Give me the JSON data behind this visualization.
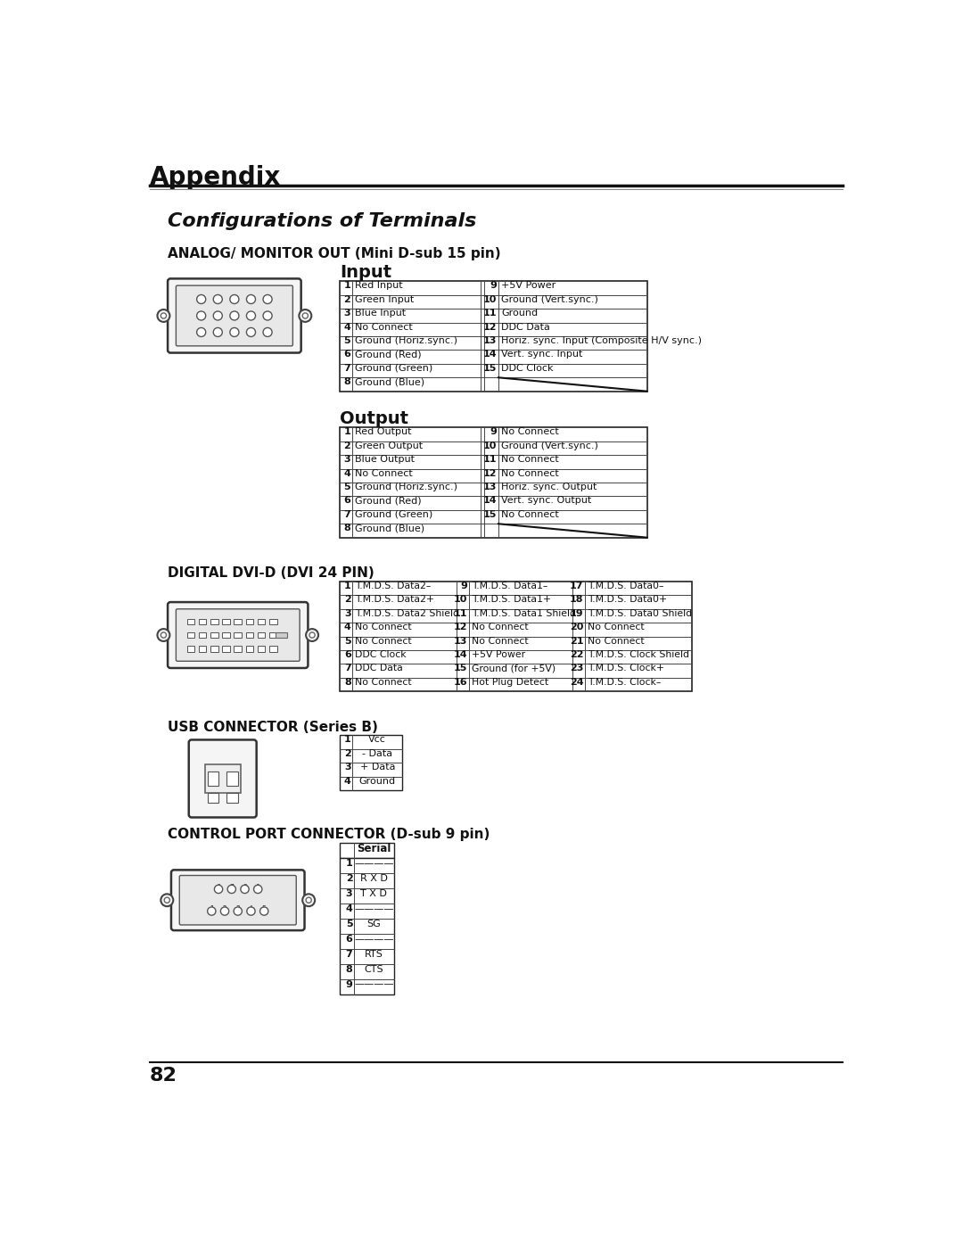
{
  "page_title": "Appendix",
  "section_title": "Configurations of Terminals",
  "bg_color": "#ffffff",
  "analog_label": "ANALOG/ MONITOR OUT (Mini D-sub 15 pin)",
  "input_title": "Input",
  "output_title": "Output",
  "input_rows_left": [
    [
      "1",
      "Red Input"
    ],
    [
      "2",
      "Green Input"
    ],
    [
      "3",
      "Blue Input"
    ],
    [
      "4",
      "No Connect"
    ],
    [
      "5",
      "Ground (Horiz.sync.)"
    ],
    [
      "6",
      "Ground (Red)"
    ],
    [
      "7",
      "Ground (Green)"
    ],
    [
      "8",
      "Ground (Blue)"
    ]
  ],
  "input_rows_right": [
    [
      "9",
      "+5V Power"
    ],
    [
      "10",
      "Ground (Vert.sync.)"
    ],
    [
      "11",
      "Ground"
    ],
    [
      "12",
      "DDC Data"
    ],
    [
      "13",
      "Horiz. sync. Input (Composite H/V sync.)"
    ],
    [
      "14",
      "Vert. sync. Input"
    ],
    [
      "15",
      "DDC Clock"
    ],
    [
      "",
      ""
    ]
  ],
  "output_rows_left": [
    [
      "1",
      "Red Output"
    ],
    [
      "2",
      "Green Output"
    ],
    [
      "3",
      "Blue Output"
    ],
    [
      "4",
      "No Connect"
    ],
    [
      "5",
      "Ground (Horiz.sync.)"
    ],
    [
      "6",
      "Ground (Red)"
    ],
    [
      "7",
      "Ground (Green)"
    ],
    [
      "8",
      "Ground (Blue)"
    ]
  ],
  "output_rows_right": [
    [
      "9",
      "No Connect"
    ],
    [
      "10",
      "Ground (Vert.sync.)"
    ],
    [
      "11",
      "No Connect"
    ],
    [
      "12",
      "No Connect"
    ],
    [
      "13",
      "Horiz. sync. Output"
    ],
    [
      "14",
      "Vert. sync. Output"
    ],
    [
      "15",
      "No Connect"
    ],
    [
      "",
      ""
    ]
  ],
  "dvi_label": "DIGITAL DVI-D (DVI 24 PIN)",
  "dvi_rows_left": [
    [
      "1",
      "T.M.D.S. Data2–"
    ],
    [
      "2",
      "T.M.D.S. Data2+"
    ],
    [
      "3",
      "T.M.D.S. Data2 Shield"
    ],
    [
      "4",
      "No Connect"
    ],
    [
      "5",
      "No Connect"
    ],
    [
      "6",
      "DDC Clock"
    ],
    [
      "7",
      "DDC Data"
    ],
    [
      "8",
      "No Connect"
    ]
  ],
  "dvi_rows_mid": [
    [
      "9",
      "T.M.D.S. Data1–"
    ],
    [
      "10",
      "T.M.D.S. Data1+"
    ],
    [
      "11",
      "T.M.D.S. Data1 Shield"
    ],
    [
      "12",
      "No Connect"
    ],
    [
      "13",
      "No Connect"
    ],
    [
      "14",
      "+5V Power"
    ],
    [
      "15",
      "Ground (for +5V)"
    ],
    [
      "16",
      "Hot Plug Detect"
    ]
  ],
  "dvi_rows_right": [
    [
      "17",
      "T.M.D.S. Data0–"
    ],
    [
      "18",
      "T.M.D.S. Data0+"
    ],
    [
      "19",
      "T.M.D.S. Data0 Shield"
    ],
    [
      "20",
      "No Connect"
    ],
    [
      "21",
      "No Connect"
    ],
    [
      "22",
      "T.M.D.S. Clock Shield"
    ],
    [
      "23",
      "T.M.D.S. Clock+"
    ],
    [
      "24",
      "T.M.D.S. Clock–"
    ]
  ],
  "usb_label": "USB CONNECTOR (Series B)",
  "usb_rows": [
    [
      "1",
      "Vcc"
    ],
    [
      "2",
      "- Data"
    ],
    [
      "3",
      "+ Data"
    ],
    [
      "4",
      "Ground"
    ]
  ],
  "ctrl_label": "CONTROL PORT CONNECTOR (D-sub 9 pin)",
  "ctrl_header": "Serial",
  "ctrl_rows": [
    [
      "1",
      "————"
    ],
    [
      "2",
      "R X D"
    ],
    [
      "3",
      "T X D"
    ],
    [
      "4",
      "————"
    ],
    [
      "5",
      "SG"
    ],
    [
      "6",
      "————"
    ],
    [
      "7",
      "RTS"
    ],
    [
      "8",
      "CTS"
    ],
    [
      "9",
      "————"
    ]
  ],
  "page_number": "82"
}
